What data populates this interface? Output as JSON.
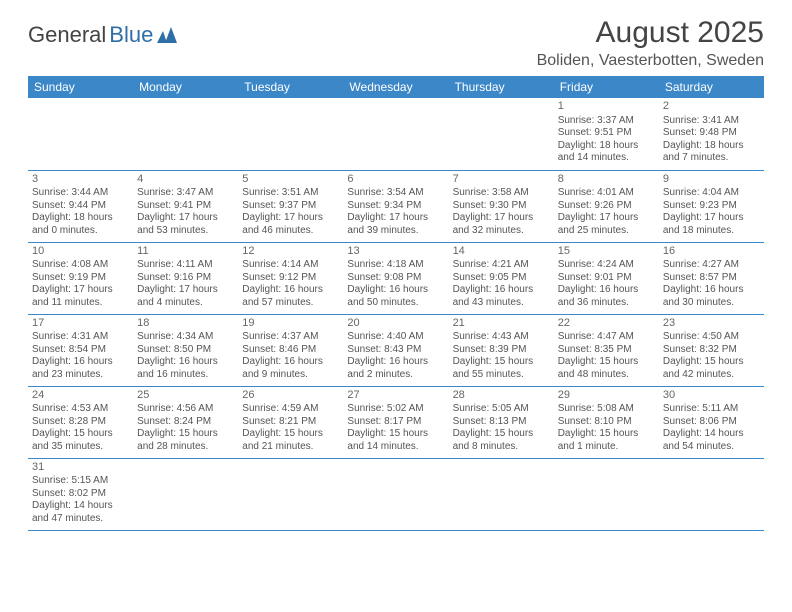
{
  "logo": {
    "part1": "General",
    "part2": "Blue"
  },
  "title": "August 2025",
  "location": "Boliden, Vaesterbotten, Sweden",
  "day_headers": [
    "Sunday",
    "Monday",
    "Tuesday",
    "Wednesday",
    "Thursday",
    "Friday",
    "Saturday"
  ],
  "colors": {
    "header_bg": "#3b87c8",
    "header_text": "#ffffff",
    "cell_text": "#555555",
    "row_bottom": "#3b87c8",
    "logo_blue": "#2f6fa8"
  },
  "weeks": [
    [
      null,
      null,
      null,
      null,
      null,
      {
        "n": "1",
        "sr": "Sunrise: 3:37 AM",
        "ss": "Sunset: 9:51 PM",
        "dl1": "Daylight: 18 hours",
        "dl2": "and 14 minutes."
      },
      {
        "n": "2",
        "sr": "Sunrise: 3:41 AM",
        "ss": "Sunset: 9:48 PM",
        "dl1": "Daylight: 18 hours",
        "dl2": "and 7 minutes."
      }
    ],
    [
      {
        "n": "3",
        "sr": "Sunrise: 3:44 AM",
        "ss": "Sunset: 9:44 PM",
        "dl1": "Daylight: 18 hours",
        "dl2": "and 0 minutes."
      },
      {
        "n": "4",
        "sr": "Sunrise: 3:47 AM",
        "ss": "Sunset: 9:41 PM",
        "dl1": "Daylight: 17 hours",
        "dl2": "and 53 minutes."
      },
      {
        "n": "5",
        "sr": "Sunrise: 3:51 AM",
        "ss": "Sunset: 9:37 PM",
        "dl1": "Daylight: 17 hours",
        "dl2": "and 46 minutes."
      },
      {
        "n": "6",
        "sr": "Sunrise: 3:54 AM",
        "ss": "Sunset: 9:34 PM",
        "dl1": "Daylight: 17 hours",
        "dl2": "and 39 minutes."
      },
      {
        "n": "7",
        "sr": "Sunrise: 3:58 AM",
        "ss": "Sunset: 9:30 PM",
        "dl1": "Daylight: 17 hours",
        "dl2": "and 32 minutes."
      },
      {
        "n": "8",
        "sr": "Sunrise: 4:01 AM",
        "ss": "Sunset: 9:26 PM",
        "dl1": "Daylight: 17 hours",
        "dl2": "and 25 minutes."
      },
      {
        "n": "9",
        "sr": "Sunrise: 4:04 AM",
        "ss": "Sunset: 9:23 PM",
        "dl1": "Daylight: 17 hours",
        "dl2": "and 18 minutes."
      }
    ],
    [
      {
        "n": "10",
        "sr": "Sunrise: 4:08 AM",
        "ss": "Sunset: 9:19 PM",
        "dl1": "Daylight: 17 hours",
        "dl2": "and 11 minutes."
      },
      {
        "n": "11",
        "sr": "Sunrise: 4:11 AM",
        "ss": "Sunset: 9:16 PM",
        "dl1": "Daylight: 17 hours",
        "dl2": "and 4 minutes."
      },
      {
        "n": "12",
        "sr": "Sunrise: 4:14 AM",
        "ss": "Sunset: 9:12 PM",
        "dl1": "Daylight: 16 hours",
        "dl2": "and 57 minutes."
      },
      {
        "n": "13",
        "sr": "Sunrise: 4:18 AM",
        "ss": "Sunset: 9:08 PM",
        "dl1": "Daylight: 16 hours",
        "dl2": "and 50 minutes."
      },
      {
        "n": "14",
        "sr": "Sunrise: 4:21 AM",
        "ss": "Sunset: 9:05 PM",
        "dl1": "Daylight: 16 hours",
        "dl2": "and 43 minutes."
      },
      {
        "n": "15",
        "sr": "Sunrise: 4:24 AM",
        "ss": "Sunset: 9:01 PM",
        "dl1": "Daylight: 16 hours",
        "dl2": "and 36 minutes."
      },
      {
        "n": "16",
        "sr": "Sunrise: 4:27 AM",
        "ss": "Sunset: 8:57 PM",
        "dl1": "Daylight: 16 hours",
        "dl2": "and 30 minutes."
      }
    ],
    [
      {
        "n": "17",
        "sr": "Sunrise: 4:31 AM",
        "ss": "Sunset: 8:54 PM",
        "dl1": "Daylight: 16 hours",
        "dl2": "and 23 minutes."
      },
      {
        "n": "18",
        "sr": "Sunrise: 4:34 AM",
        "ss": "Sunset: 8:50 PM",
        "dl1": "Daylight: 16 hours",
        "dl2": "and 16 minutes."
      },
      {
        "n": "19",
        "sr": "Sunrise: 4:37 AM",
        "ss": "Sunset: 8:46 PM",
        "dl1": "Daylight: 16 hours",
        "dl2": "and 9 minutes."
      },
      {
        "n": "20",
        "sr": "Sunrise: 4:40 AM",
        "ss": "Sunset: 8:43 PM",
        "dl1": "Daylight: 16 hours",
        "dl2": "and 2 minutes."
      },
      {
        "n": "21",
        "sr": "Sunrise: 4:43 AM",
        "ss": "Sunset: 8:39 PM",
        "dl1": "Daylight: 15 hours",
        "dl2": "and 55 minutes."
      },
      {
        "n": "22",
        "sr": "Sunrise: 4:47 AM",
        "ss": "Sunset: 8:35 PM",
        "dl1": "Daylight: 15 hours",
        "dl2": "and 48 minutes."
      },
      {
        "n": "23",
        "sr": "Sunrise: 4:50 AM",
        "ss": "Sunset: 8:32 PM",
        "dl1": "Daylight: 15 hours",
        "dl2": "and 42 minutes."
      }
    ],
    [
      {
        "n": "24",
        "sr": "Sunrise: 4:53 AM",
        "ss": "Sunset: 8:28 PM",
        "dl1": "Daylight: 15 hours",
        "dl2": "and 35 minutes."
      },
      {
        "n": "25",
        "sr": "Sunrise: 4:56 AM",
        "ss": "Sunset: 8:24 PM",
        "dl1": "Daylight: 15 hours",
        "dl2": "and 28 minutes."
      },
      {
        "n": "26",
        "sr": "Sunrise: 4:59 AM",
        "ss": "Sunset: 8:21 PM",
        "dl1": "Daylight: 15 hours",
        "dl2": "and 21 minutes."
      },
      {
        "n": "27",
        "sr": "Sunrise: 5:02 AM",
        "ss": "Sunset: 8:17 PM",
        "dl1": "Daylight: 15 hours",
        "dl2": "and 14 minutes."
      },
      {
        "n": "28",
        "sr": "Sunrise: 5:05 AM",
        "ss": "Sunset: 8:13 PM",
        "dl1": "Daylight: 15 hours",
        "dl2": "and 8 minutes."
      },
      {
        "n": "29",
        "sr": "Sunrise: 5:08 AM",
        "ss": "Sunset: 8:10 PM",
        "dl1": "Daylight: 15 hours",
        "dl2": "and 1 minute."
      },
      {
        "n": "30",
        "sr": "Sunrise: 5:11 AM",
        "ss": "Sunset: 8:06 PM",
        "dl1": "Daylight: 14 hours",
        "dl2": "and 54 minutes."
      }
    ],
    [
      {
        "n": "31",
        "sr": "Sunrise: 5:15 AM",
        "ss": "Sunset: 8:02 PM",
        "dl1": "Daylight: 14 hours",
        "dl2": "and 47 minutes."
      },
      null,
      null,
      null,
      null,
      null,
      null
    ]
  ]
}
